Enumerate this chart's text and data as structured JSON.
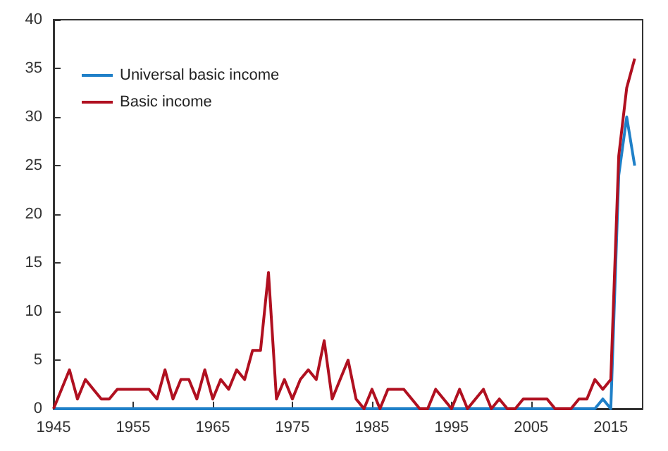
{
  "chart_data": {
    "type": "line",
    "x": [
      1945,
      1946,
      1947,
      1948,
      1949,
      1950,
      1951,
      1952,
      1953,
      1954,
      1955,
      1956,
      1957,
      1958,
      1959,
      1960,
      1961,
      1962,
      1963,
      1964,
      1965,
      1966,
      1967,
      1968,
      1969,
      1970,
      1971,
      1972,
      1973,
      1974,
      1975,
      1976,
      1977,
      1978,
      1979,
      1980,
      1981,
      1982,
      1983,
      1984,
      1985,
      1986,
      1987,
      1988,
      1989,
      1990,
      1991,
      1992,
      1993,
      1994,
      1995,
      1996,
      1997,
      1998,
      1999,
      2000,
      2001,
      2002,
      2003,
      2004,
      2005,
      2006,
      2007,
      2008,
      2009,
      2010,
      2011,
      2012,
      2013,
      2014,
      2015,
      2016,
      2017,
      2018
    ],
    "series": [
      {
        "name": "Universal basic income",
        "color": "#1f80c8",
        "values": [
          0,
          0,
          0,
          0,
          0,
          0,
          0,
          0,
          0,
          0,
          0,
          0,
          0,
          0,
          0,
          0,
          0,
          0,
          0,
          0,
          0,
          0,
          0,
          0,
          0,
          0,
          0,
          0,
          0,
          0,
          0,
          0,
          0,
          0,
          0,
          0,
          0,
          0,
          0,
          0,
          0,
          0,
          0,
          0,
          0,
          0,
          0,
          0,
          0,
          0,
          0,
          0,
          0,
          0,
          0,
          0,
          0,
          0,
          0,
          0,
          0,
          0,
          0,
          0,
          0,
          0,
          0,
          0,
          0,
          1,
          0,
          24,
          30,
          25
        ]
      },
      {
        "name": "Basic income",
        "color": "#b01020",
        "values": [
          0,
          2,
          4,
          1,
          3,
          2,
          1,
          1,
          2,
          2,
          2,
          2,
          2,
          1,
          4,
          1,
          3,
          3,
          1,
          4,
          1,
          3,
          2,
          4,
          3,
          6,
          6,
          14,
          1,
          3,
          1,
          3,
          4,
          3,
          7,
          1,
          3,
          5,
          1,
          0,
          2,
          0,
          2,
          2,
          2,
          1,
          0,
          0,
          2,
          1,
          0,
          2,
          0,
          1,
          2,
          0,
          1,
          0,
          0,
          1,
          1,
          1,
          1,
          0,
          0,
          0,
          1,
          1,
          3,
          2,
          3,
          26,
          33,
          36
        ]
      }
    ],
    "xlim": [
      1945,
      2019
    ],
    "xticks": [
      1945,
      1955,
      1965,
      1975,
      1985,
      1995,
      2005,
      2015
    ],
    "ylim": [
      0,
      40
    ],
    "yticks": [
      0,
      5,
      10,
      15,
      20,
      25,
      30,
      35,
      40
    ],
    "legend": "top left",
    "grid": false,
    "marker": "none",
    "line_style": "solid"
  }
}
